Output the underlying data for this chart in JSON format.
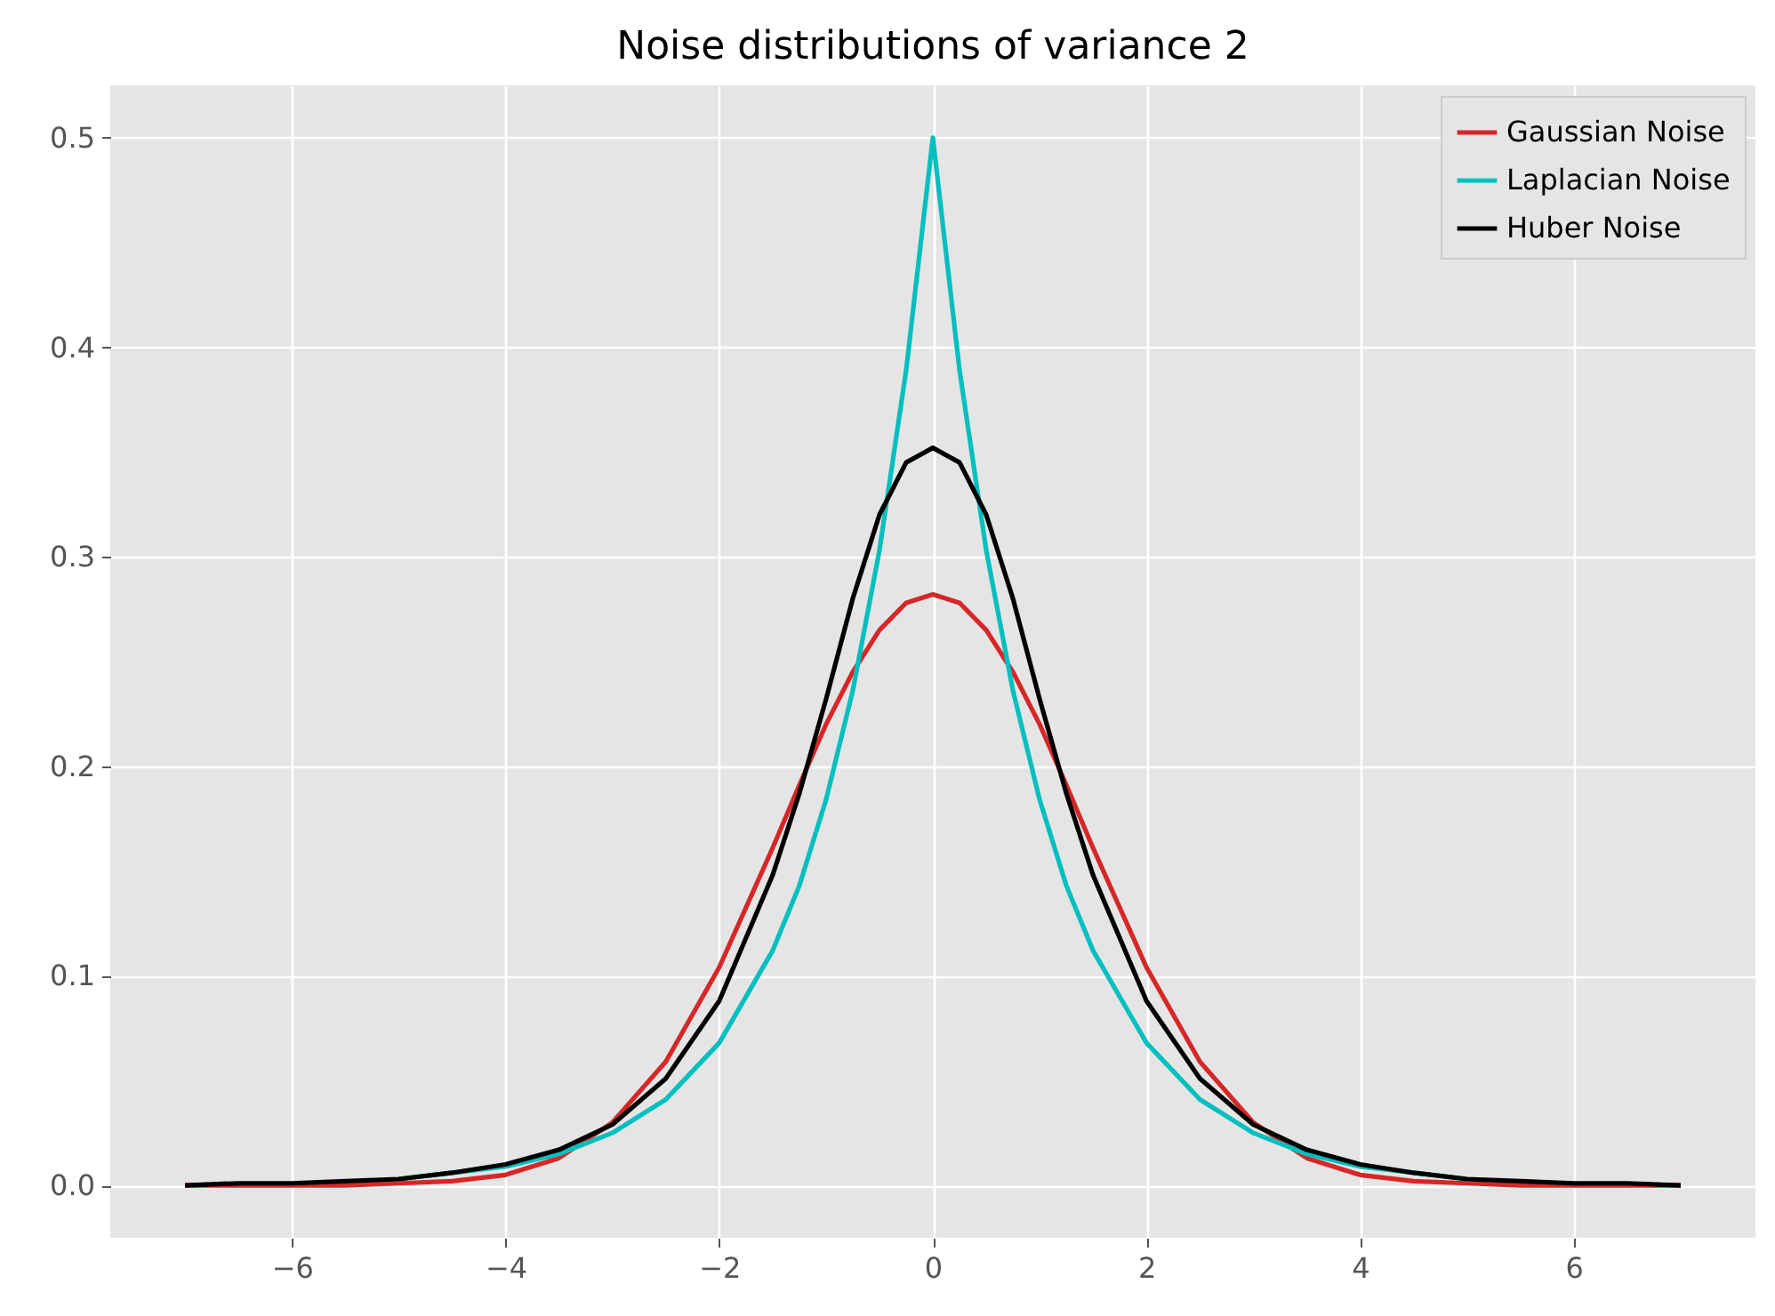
{
  "chart_data": {
    "type": "line",
    "title": "Noise distributions of variance 2",
    "x": [
      -7,
      -6.5,
      -6,
      -5.5,
      -5,
      -4.5,
      -4,
      -3.5,
      -3,
      -2.5,
      -2,
      -1.5,
      -1.25,
      -1,
      -0.75,
      -0.5,
      -0.25,
      0,
      0.25,
      0.5,
      0.75,
      1,
      1.25,
      1.5,
      2,
      2.5,
      3,
      3.5,
      4,
      4.5,
      5,
      5.5,
      6,
      6.5,
      7
    ],
    "series": [
      {
        "name": "Gaussian Noise",
        "color": "#d62728",
        "values": [
          0,
          0,
          0,
          0,
          0.001,
          0.002,
          0.005,
          0.013,
          0.03,
          0.059,
          0.104,
          0.161,
          0.191,
          0.22,
          0.245,
          0.265,
          0.278,
          0.282,
          0.278,
          0.265,
          0.245,
          0.22,
          0.191,
          0.161,
          0.104,
          0.059,
          0.03,
          0.013,
          0.005,
          0.002,
          0.001,
          0,
          0,
          0,
          0
        ]
      },
      {
        "name": "Laplacian Noise",
        "color": "#00bfbf",
        "values": [
          null,
          null,
          null,
          null,
          0.003,
          0.006,
          0.009,
          0.015,
          0.025,
          0.041,
          0.068,
          0.112,
          0.143,
          0.184,
          0.236,
          0.303,
          0.389,
          0.5,
          0.389,
          0.303,
          0.236,
          0.184,
          0.143,
          0.112,
          0.068,
          0.041,
          0.025,
          0.015,
          0.009,
          0.006,
          0.003,
          null,
          null,
          null,
          null
        ]
      },
      {
        "name": "Huber Noise",
        "color": "#000000",
        "values": [
          0,
          0.001,
          0.001,
          0.002,
          0.003,
          0.006,
          0.01,
          0.017,
          0.029,
          0.051,
          0.088,
          0.148,
          0.187,
          0.232,
          0.28,
          0.32,
          0.345,
          0.352,
          0.345,
          0.32,
          0.28,
          0.232,
          0.187,
          0.148,
          0.088,
          0.051,
          0.029,
          0.017,
          0.01,
          0.006,
          0.003,
          0.002,
          0.001,
          0.001,
          0
        ]
      }
    ],
    "xlim": [
      -7.7,
      7.7
    ],
    "ylim": [
      -0.025,
      0.525
    ],
    "xticks": [
      {
        "value": -6,
        "label": "−6"
      },
      {
        "value": -4,
        "label": "−4"
      },
      {
        "value": -2,
        "label": "−2"
      },
      {
        "value": 0,
        "label": "0"
      },
      {
        "value": 2,
        "label": "2"
      },
      {
        "value": 4,
        "label": "4"
      },
      {
        "value": 6,
        "label": "6"
      }
    ],
    "yticks": [
      {
        "value": 0,
        "label": "0.0"
      },
      {
        "value": 0.1,
        "label": "0.1"
      },
      {
        "value": 0.2,
        "label": "0.2"
      },
      {
        "value": 0.3,
        "label": "0.3"
      },
      {
        "value": 0.4,
        "label": "0.4"
      },
      {
        "value": 0.5,
        "label": "0.5"
      }
    ],
    "grid": true,
    "legend": "top right",
    "line_style": "solid"
  }
}
